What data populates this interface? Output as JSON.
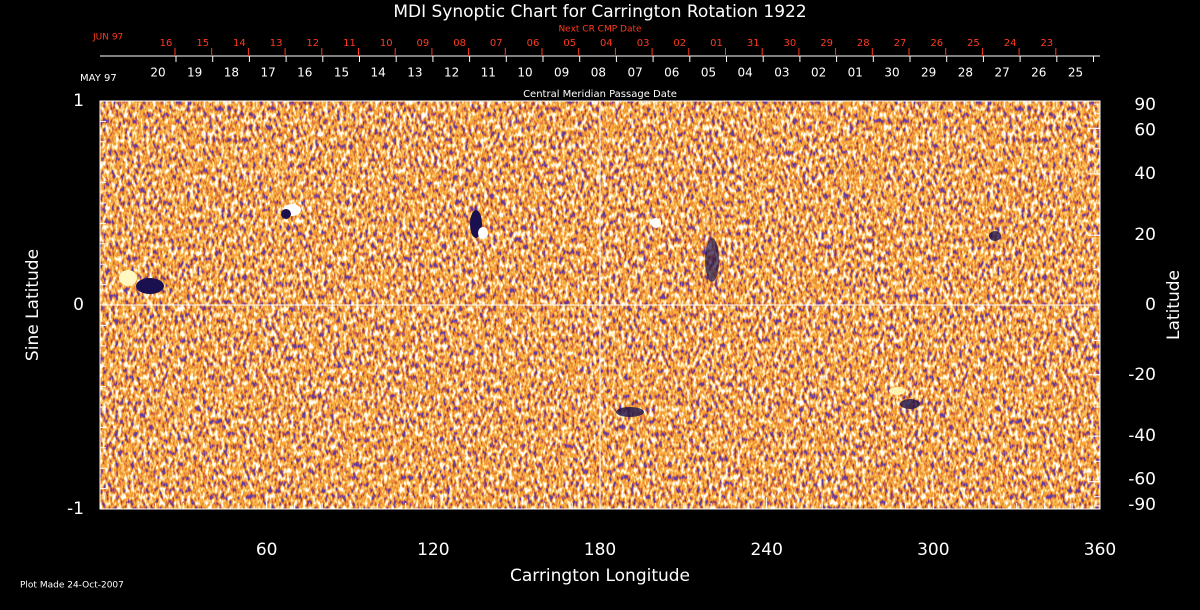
{
  "chart_data": {
    "type": "synoptic-map",
    "title": "MDI Synoptic Chart for Carrington Rotation 1922",
    "top_label_next": "Next CR CMP Date",
    "top_label_cmp": "Central Meridian Passage Date",
    "next_month": "JUN 97",
    "next_dates": [
      "16",
      "15",
      "14",
      "13",
      "12",
      "11",
      "10",
      "09",
      "08",
      "07",
      "06",
      "05",
      "04",
      "03",
      "02",
      "01",
      "31",
      "30",
      "29",
      "28",
      "27",
      "26",
      "25",
      "24",
      "23"
    ],
    "cmp_month": "MAY 97",
    "cmp_dates": [
      "20",
      "19",
      "18",
      "17",
      "16",
      "15",
      "14",
      "13",
      "12",
      "11",
      "10",
      "09",
      "08",
      "07",
      "06",
      "05",
      "04",
      "03",
      "02",
      "01",
      "30",
      "29",
      "28",
      "27",
      "26",
      "25"
    ],
    "xlabel": "Carrington Longitude",
    "ylabel": "Sine Latitude",
    "y2label": "Latitude",
    "xlim": [
      0,
      360
    ],
    "xticks": [
      60,
      120,
      180,
      240,
      300,
      360
    ],
    "ylim": [
      -1,
      1
    ],
    "yticks": [
      -1,
      0,
      1
    ],
    "y2lim": [
      -90,
      90
    ],
    "y2ticks": [
      90,
      60,
      40,
      20,
      0,
      -20,
      -40,
      -60,
      -90
    ],
    "y2scale": "sine",
    "footnote": "Plot Made 24-Oct-2007"
  }
}
